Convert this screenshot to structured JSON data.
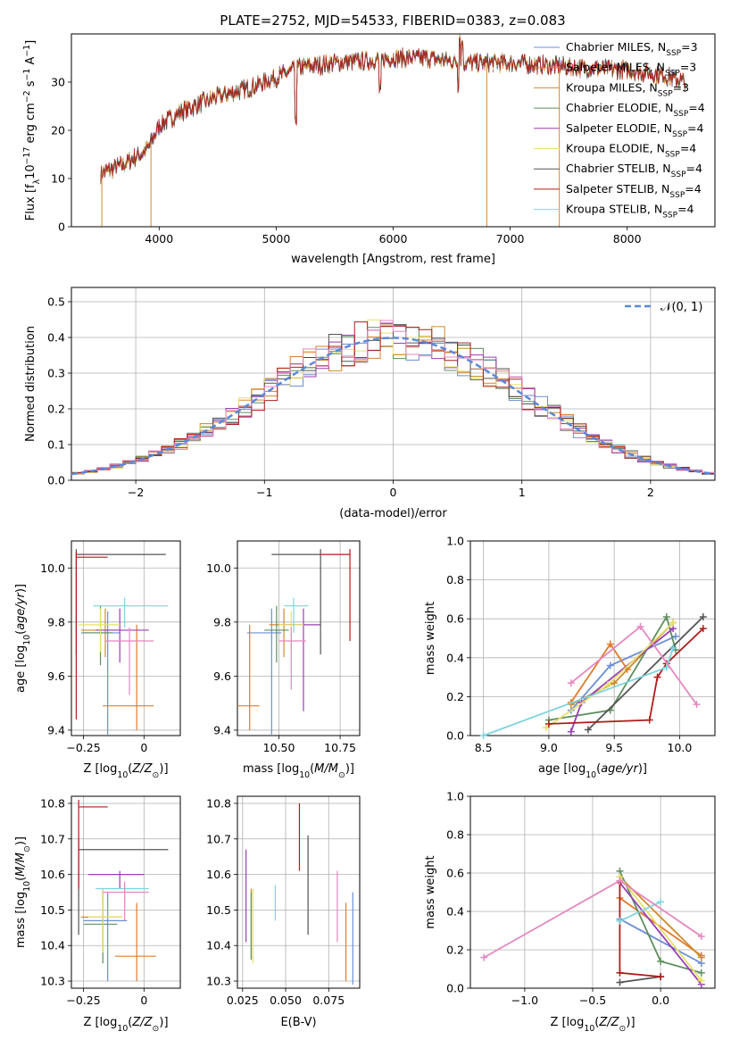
{
  "figure_title": "PLATE=2752, MJD=54533, FIBERID=0383, z=0.083",
  "series_colors": [
    "#6b8fd6",
    "#e07b2a",
    "#d08a2e",
    "#5f8f5f",
    "#9a3fb5",
    "#e6e06a",
    "#555555",
    "#b01c1c",
    "#7ed4dd"
  ],
  "chart_data": [
    {
      "id": "spectrum",
      "type": "line",
      "title": "PLATE=2752, MJD=54533, FIBERID=0383, z=0.083",
      "xlabel": "wavelength [Angstrom, rest frame]",
      "ylabel": "Flux [fλ10⁻¹⁷ erg cm⁻² s⁻¹ A⁻¹]",
      "xlim": [
        3250,
        8750
      ],
      "ylim": [
        0,
        40
      ],
      "xticks": [
        4000,
        5000,
        6000,
        7000,
        8000
      ],
      "yticks": [
        0,
        10,
        20,
        30
      ],
      "grid": false,
      "legend_position": "right",
      "series": [
        {
          "name": "Chabrier MILES, NSSP=3",
          "name_main": "Chabrier MILES, N",
          "name_sub": "SSP",
          "name_tail": "=3"
        },
        {
          "name": "Salpeter MILES, NSSP=3",
          "name_main": "Salpeter MILES, N",
          "name_sub": "SSP",
          "name_tail": "=3"
        },
        {
          "name": "Kroupa MILES, NSSP=3",
          "name_main": "Kroupa MILES, N",
          "name_sub": "SSP",
          "name_tail": "=3"
        },
        {
          "name": "Chabrier ELODIE, NSSP=4",
          "name_main": "Chabrier ELODIE, N",
          "name_sub": "SSP",
          "name_tail": "=4"
        },
        {
          "name": "Salpeter ELODIE, NSSP=4",
          "name_main": "Salpeter ELODIE, N",
          "name_sub": "SSP",
          "name_tail": "=4"
        },
        {
          "name": "Kroupa ELODIE, NSSP=4",
          "name_main": "Kroupa ELODIE, N",
          "name_sub": "SSP",
          "name_tail": "=4"
        },
        {
          "name": "Chabrier STELIB, NSSP=4",
          "name_main": "Chabrier STELIB, N",
          "name_sub": "SSP",
          "name_tail": "=4"
        },
        {
          "name": "Salpeter STELIB, NSSP=4",
          "name_main": "Salpeter STELIB, N",
          "name_sub": "SSP",
          "name_tail": "=4"
        },
        {
          "name": "Kroupa STELIB, NSSP=4",
          "name_main": "Kroupa STELIB, N",
          "name_sub": "SSP",
          "name_tail": "=4"
        }
      ],
      "continuum": {
        "x": [
          3500,
          3700,
          3900,
          4000,
          4200,
          4500,
          4800,
          5000,
          5200,
          5500,
          5800,
          6000,
          6300,
          6600,
          7000,
          7300,
          7600,
          8000,
          8300,
          8500
        ],
        "y": [
          11,
          13,
          16,
          21,
          24,
          27,
          29,
          31,
          33,
          34,
          34.5,
          35,
          35,
          34,
          34,
          33.5,
          33,
          32.5,
          31.5,
          30
        ]
      },
      "dips": [
        {
          "x": 5170,
          "y": 22
        },
        {
          "x": 5890,
          "y": 28
        },
        {
          "x": 6563,
          "y": 29
        }
      ],
      "peaks": [
        {
          "x": 6570,
          "y": 39.5
        },
        {
          "x": 6590,
          "y": 38
        }
      ],
      "drops_to_zero": [
        3510,
        3930,
        6800,
        7420
      ]
    },
    {
      "id": "residuals",
      "type": "histogram",
      "xlabel": "(data-model)/error",
      "ylabel": "Normed distribution",
      "xlim": [
        -2.5,
        2.5
      ],
      "ylim": [
        0,
        0.54
      ],
      "xticks": [
        -2,
        -1,
        0,
        1,
        2
      ],
      "yticks": [
        0.0,
        0.1,
        0.2,
        0.3,
        0.4,
        0.5
      ],
      "grid": true,
      "legend_position": "top-right",
      "legend": "𝒩(0, 1)",
      "gaussian": {
        "mean": 0,
        "sigma": 1
      },
      "bin_width": 0.1
    },
    {
      "id": "age-vs-Z",
      "type": "errorbar",
      "xlabel": "Z [log10(Z/Z⊙)]",
      "ylabel": "age  [log10(age/yr)]",
      "xlim": [
        -0.3,
        0.15
      ],
      "ylim": [
        9.38,
        10.1
      ],
      "xticks": [
        -0.25,
        0.0
      ],
      "yticks": [
        9.4,
        9.6,
        9.8,
        10.0
      ],
      "grid": true,
      "points": [
        {
          "x": -0.15,
          "y": 9.76,
          "xerr": [
            0.11,
            0.05
          ],
          "yerr": [
            0.38,
            0.08
          ]
        },
        {
          "x": -0.03,
          "y": 9.49,
          "xerr": [
            0.14,
            0.07
          ],
          "yerr": [
            0.09,
            0.3
          ]
        },
        {
          "x": -0.16,
          "y": 9.77,
          "xerr": [
            0.1,
            0.06
          ],
          "yerr": [
            0.1,
            0.08
          ]
        },
        {
          "x": -0.18,
          "y": 9.76,
          "xerr": [
            0.07,
            0.05
          ],
          "yerr": [
            0.12,
            0.1
          ]
        },
        {
          "x": -0.1,
          "y": 9.77,
          "xerr": [
            0.1,
            0.12
          ],
          "yerr": [
            0.12,
            0.08
          ]
        },
        {
          "x": -0.18,
          "y": 9.79,
          "xerr": [
            0.09,
            0.08
          ],
          "yerr": [
            0.1,
            0.06
          ]
        },
        {
          "x": -0.28,
          "y": 10.05,
          "xerr": [
            0.0,
            0.37
          ],
          "yerr": [
            0.37,
            0.02
          ]
        },
        {
          "x": -0.28,
          "y": 10.04,
          "xerr": [
            0.0,
            0.13
          ],
          "yerr": [
            0.6,
            0.02
          ]
        },
        {
          "x": -0.08,
          "y": 9.86,
          "xerr": [
            0.13,
            0.18
          ],
          "yerr": [
            0.08,
            0.03
          ]
        },
        {
          "x": -0.06,
          "y": 9.73,
          "xerr": [
            0.1,
            0.1
          ],
          "yerr": [
            0.2,
            0.05
          ]
        }
      ]
    },
    {
      "id": "age-vs-mass",
      "type": "errorbar",
      "xlabel": "mass [log10(M/M⊙)]",
      "ylabel": "",
      "xlim": [
        10.33,
        10.83
      ],
      "ylim": [
        9.38,
        10.1
      ],
      "xticks": [
        10.5,
        10.75
      ],
      "xticklabels": [
        "10.50",
        "10.75"
      ],
      "yticks": [
        9.4,
        9.6,
        9.8,
        10.0
      ],
      "grid": true,
      "points": [
        {
          "x": 10.47,
          "y": 9.76,
          "xerr": [
            0.1,
            0.04
          ],
          "yerr": [
            0.38,
            0.09
          ]
        },
        {
          "x": 10.38,
          "y": 9.49,
          "xerr": [
            0.08,
            0.04
          ],
          "yerr": [
            0.09,
            0.3
          ]
        },
        {
          "x": 10.52,
          "y": 9.79,
          "xerr": [
            0.06,
            0.04
          ],
          "yerr": [
            0.12,
            0.06
          ]
        },
        {
          "x": 10.49,
          "y": 9.77,
          "xerr": [
            0.05,
            0.05
          ],
          "yerr": [
            0.12,
            0.09
          ]
        },
        {
          "x": 10.6,
          "y": 9.79,
          "xerr": [
            0.08,
            0.07
          ],
          "yerr": [
            0.32,
            0.06
          ]
        },
        {
          "x": 10.55,
          "y": 9.79,
          "xerr": [
            0.05,
            0.05
          ],
          "yerr": [
            0.1,
            0.05
          ]
        },
        {
          "x": 10.67,
          "y": 10.05,
          "xerr": [
            0.2,
            0.0
          ],
          "yerr": [
            0.37,
            0.02
          ]
        },
        {
          "x": 10.79,
          "y": 10.05,
          "xerr": [
            0.12,
            0.0
          ],
          "yerr": [
            0.32,
            0.02
          ]
        },
        {
          "x": 10.56,
          "y": 9.86,
          "xerr": [
            0.04,
            0.06
          ],
          "yerr": [
            0.1,
            0.03
          ]
        },
        {
          "x": 10.55,
          "y": 9.73,
          "xerr": [
            0.05,
            0.06
          ],
          "yerr": [
            0.18,
            0.05
          ]
        }
      ]
    },
    {
      "id": "weight-vs-age",
      "type": "line",
      "xlabel": "age  [log10(age/yr)]",
      "ylabel": "mass weight",
      "xlim": [
        8.4,
        10.27
      ],
      "ylim": [
        0,
        1
      ],
      "xticks": [
        8.5,
        9.0,
        9.5,
        10.0
      ],
      "xticklabels": [
        "8.5",
        "9.0",
        "9.5",
        "10.0"
      ],
      "yticks": [
        0.0,
        0.2,
        0.4,
        0.6,
        0.8,
        1.0
      ],
      "grid": true,
      "series": [
        {
          "x": [
            9.17,
            9.47,
            9.97
          ],
          "y": [
            0.13,
            0.36,
            0.51
          ]
        },
        {
          "x": [
            9.17,
            9.47,
            9.6
          ],
          "y": [
            0.17,
            0.47,
            0.34
          ]
        },
        {
          "x": [
            9.17,
            9.5,
            9.95
          ],
          "y": [
            0.16,
            0.27,
            0.58
          ]
        },
        {
          "x": [
            9.0,
            9.47,
            9.9,
            9.97
          ],
          "y": [
            0.08,
            0.13,
            0.61,
            0.44
          ]
        },
        {
          "x": [
            9.17,
            9.25,
            9.95
          ],
          "y": [
            0.02,
            0.17,
            0.55
          ]
        },
        {
          "x": [
            8.98,
            9.45,
            9.95
          ],
          "y": [
            0.04,
            0.26,
            0.58
          ]
        },
        {
          "x": [
            9.3,
            10.18
          ],
          "y": [
            0.03,
            0.61
          ]
        },
        {
          "x": [
            9.0,
            9.77,
            9.83,
            9.9,
            10.18
          ],
          "y": [
            0.06,
            0.08,
            0.3,
            0.37,
            0.55
          ]
        },
        {
          "x": [
            8.5,
            9.9,
            9.95
          ],
          "y": [
            0.0,
            0.35,
            0.45
          ]
        },
        {
          "x": [
            9.17,
            9.7,
            10.13
          ],
          "y": [
            0.27,
            0.56,
            0.16
          ]
        }
      ]
    },
    {
      "id": "mass-vs-Z",
      "type": "errorbar",
      "xlabel": "Z [log10(Z/Z⊙)]",
      "ylabel": "mass [log10(M/M⊙)]",
      "xlim": [
        -0.3,
        0.15
      ],
      "ylim": [
        10.28,
        10.82
      ],
      "xticks": [
        -0.25,
        0.0
      ],
      "yticks": [
        10.3,
        10.4,
        10.5,
        10.6,
        10.7,
        10.8
      ],
      "grid": true,
      "points": [
        {
          "x": -0.15,
          "y": 10.47,
          "xerr": [
            0.1,
            0.08
          ],
          "yerr": [
            0.17,
            0.08
          ]
        },
        {
          "x": -0.03,
          "y": 10.37,
          "xerr": [
            0.09,
            0.08
          ],
          "yerr": [
            0.07,
            0.15
          ]
        },
        {
          "x": -0.17,
          "y": 10.48,
          "xerr": [
            0.09,
            0.08
          ],
          "yerr": [
            0.1,
            0.08
          ]
        },
        {
          "x": -0.17,
          "y": 10.46,
          "xerr": [
            0.08,
            0.06
          ],
          "yerr": [
            0.11,
            0.09
          ]
        },
        {
          "x": -0.1,
          "y": 10.6,
          "xerr": [
            0.13,
            0.1
          ],
          "yerr": [
            0.04,
            0.01
          ]
        },
        {
          "x": -0.17,
          "y": 10.48,
          "xerr": [
            0.06,
            0.08
          ],
          "yerr": [
            0.1,
            0.08
          ]
        },
        {
          "x": -0.27,
          "y": 10.67,
          "xerr": [
            0.0,
            0.37
          ],
          "yerr": [
            0.24,
            0.03
          ]
        },
        {
          "x": -0.27,
          "y": 10.79,
          "xerr": [
            0.0,
            0.12
          ],
          "yerr": [
            0.23,
            0.02
          ]
        },
        {
          "x": -0.08,
          "y": 10.56,
          "xerr": [
            0.12,
            0.1
          ],
          "yerr": [
            0.05,
            0.01
          ]
        },
        {
          "x": -0.08,
          "y": 10.55,
          "xerr": [
            0.09,
            0.1
          ],
          "yerr": [
            0.08,
            0.03
          ]
        }
      ]
    },
    {
      "id": "ebv-ticks",
      "type": "errorbar",
      "xlabel": "E(B-V)",
      "ylabel": "",
      "xlim": [
        0.022,
        0.093
      ],
      "ylim": [
        10.28,
        10.82
      ],
      "xticks": [
        0.025,
        0.05,
        0.075
      ],
      "xticklabels": [
        "0.025",
        "0.050",
        "0.075"
      ],
      "yticks": [
        10.3,
        10.4,
        10.5,
        10.6,
        10.7,
        10.8
      ],
      "grid": true,
      "points": [
        {
          "x": 0.089,
          "y": 10.46,
          "yerr": [
            0.17,
            0.09
          ]
        },
        {
          "x": 0.085,
          "y": 10.41,
          "yerr": [
            0.11,
            0.11
          ]
        },
        {
          "x": 0.03,
          "y": 10.45,
          "yerr": [
            0.09,
            0.11
          ]
        },
        {
          "x": 0.03,
          "y": 10.46,
          "yerr": [
            0.1,
            0.09
          ]
        },
        {
          "x": 0.027,
          "y": 10.54,
          "yerr": [
            0.13,
            0.13
          ]
        },
        {
          "x": 0.031,
          "y": 10.46,
          "yerr": [
            0.11,
            0.1
          ]
        },
        {
          "x": 0.063,
          "y": 10.57,
          "yerr": [
            0.14,
            0.14
          ]
        },
        {
          "x": 0.058,
          "y": 10.73,
          "yerr": [
            0.12,
            0.07
          ]
        },
        {
          "x": 0.044,
          "y": 10.52,
          "yerr": [
            0.05,
            0.05
          ]
        },
        {
          "x": 0.08,
          "y": 10.51,
          "yerr": [
            0.1,
            0.1
          ]
        }
      ]
    },
    {
      "id": "weight-vs-Z",
      "type": "line",
      "xlabel": "Z [log10(Z/Z⊙)]",
      "ylabel": "mass weight",
      "xlim": [
        -1.4,
        0.4
      ],
      "ylim": [
        0,
        1
      ],
      "xticks": [
        -1.0,
        -0.5,
        0.0
      ],
      "xticklabels": [
        "−1.0",
        "−0.5",
        "0.0"
      ],
      "yticks": [
        0.0,
        0.2,
        0.4,
        0.6,
        0.8,
        1.0
      ],
      "grid": true,
      "series": [
        {
          "x": [
            -0.3,
            0.3
          ],
          "y": [
            0.36,
            0.13
          ]
        },
        {
          "x": [
            -0.3,
            0.3
          ],
          "y": [
            0.47,
            0.17
          ]
        },
        {
          "x": [
            -0.3,
            0.3
          ],
          "y": [
            0.58,
            0.16
          ]
        },
        {
          "x": [
            -0.3,
            0.0,
            0.3
          ],
          "y": [
            0.61,
            0.14,
            0.08
          ]
        },
        {
          "x": [
            -0.3,
            0.3
          ],
          "y": [
            0.55,
            0.02
          ]
        },
        {
          "x": [
            -0.3,
            0.3
          ],
          "y": [
            0.58,
            0.04
          ]
        },
        {
          "x": [
            -0.3,
            0.0
          ],
          "y": [
            0.03,
            0.06
          ]
        },
        {
          "x": [
            -0.3,
            -0.3,
            0.0
          ],
          "y": [
            0.55,
            0.08,
            0.06
          ]
        },
        {
          "x": [
            -0.3,
            0.0
          ],
          "y": [
            0.35,
            0.45
          ]
        },
        {
          "x": [
            -1.3,
            -0.3,
            0.3
          ],
          "y": [
            0.16,
            0.56,
            0.27
          ]
        }
      ]
    }
  ]
}
